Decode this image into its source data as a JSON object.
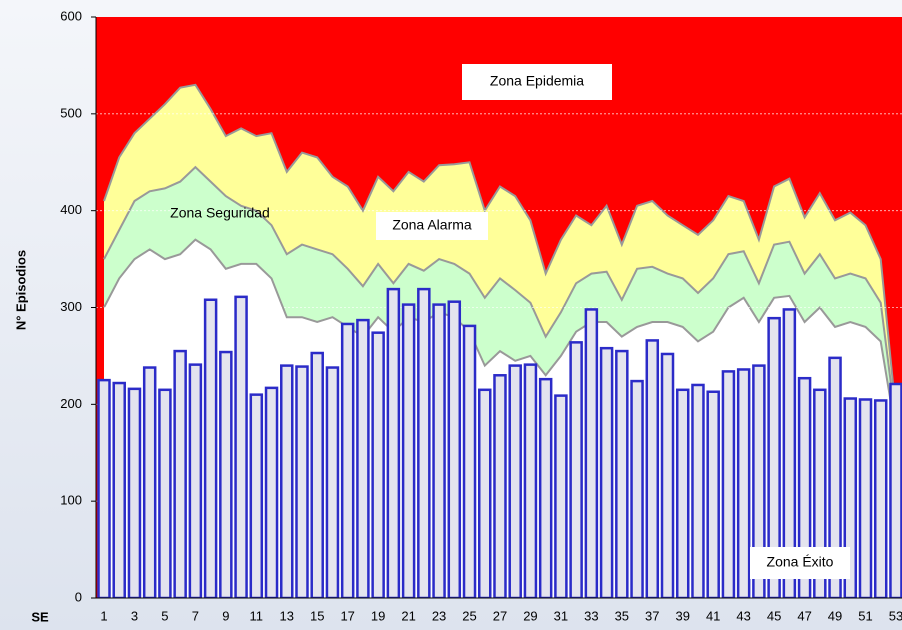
{
  "chart_data": {
    "type": "endemic-channel",
    "x_label": "SE",
    "y_label": "N° Episodios",
    "annotations": [
      "Zona Epidemia",
      "Zona Seguridad",
      "Zona Alarma",
      "Zona Éxito"
    ],
    "categories": [
      1,
      null,
      3,
      null,
      5,
      null,
      7,
      null,
      9,
      null,
      11,
      null,
      13,
      null,
      15,
      null,
      17,
      null,
      19,
      null,
      21,
      null,
      23,
      null,
      25,
      null,
      27,
      null,
      29,
      null,
      31,
      null,
      33,
      null,
      35,
      null,
      37,
      null,
      39,
      null,
      41,
      null,
      43,
      null,
      45,
      null,
      47,
      null,
      49,
      null,
      51,
      null,
      53
    ],
    "ylim": [
      0,
      600
    ],
    "yticks": [
      0,
      100,
      200,
      300,
      400,
      500,
      600
    ],
    "grid": true,
    "background_color": "#ff0000",
    "bands": [
      {
        "color": "#ffff99",
        "values": [
          410,
          455,
          480,
          495,
          510,
          527,
          530,
          505,
          477,
          485,
          477,
          480,
          440,
          460,
          455,
          435,
          425,
          400,
          435,
          420,
          440,
          430,
          447,
          448,
          450,
          400,
          425,
          415,
          390,
          335,
          370,
          395,
          385,
          405,
          365,
          405,
          410,
          395,
          385,
          375,
          390,
          415,
          410,
          370,
          425,
          433,
          393,
          418,
          390,
          398,
          385,
          350,
          190
        ]
      },
      {
        "color": "#ccffcc",
        "values": [
          350,
          380,
          410,
          420,
          423,
          430,
          445,
          430,
          415,
          405,
          400,
          385,
          355,
          365,
          360,
          355,
          340,
          322,
          345,
          325,
          345,
          338,
          350,
          345,
          335,
          310,
          330,
          318,
          305,
          270,
          295,
          325,
          335,
          337,
          308,
          340,
          342,
          335,
          330,
          315,
          330,
          355,
          358,
          325,
          365,
          368,
          335,
          355,
          330,
          335,
          330,
          305,
          180
        ]
      },
      {
        "color": "#ffffff",
        "values": [
          300,
          330,
          350,
          360,
          350,
          355,
          370,
          360,
          340,
          345,
          345,
          330,
          290,
          290,
          285,
          290,
          280,
          270,
          290,
          275,
          290,
          285,
          295,
          290,
          275,
          240,
          255,
          245,
          250,
          230,
          250,
          275,
          285,
          285,
          270,
          280,
          285,
          285,
          280,
          265,
          275,
          300,
          310,
          285,
          310,
          312,
          285,
          300,
          280,
          285,
          280,
          265,
          170
        ]
      }
    ],
    "bar_color": "#e4e4ee",
    "bar_edge_color": "#2b2bc8",
    "values": [
      225,
      222,
      216,
      238,
      215,
      255,
      241,
      308,
      254,
      311,
      210,
      217,
      240,
      239,
      253,
      238,
      283,
      287,
      274,
      319,
      303,
      319,
      303,
      306,
      281,
      215,
      230,
      240,
      241,
      226,
      209,
      264,
      298,
      258,
      255,
      224,
      266,
      252,
      215,
      220,
      213,
      234,
      236,
      240,
      289,
      298,
      227,
      215,
      248,
      206,
      205,
      204,
      221
    ]
  }
}
